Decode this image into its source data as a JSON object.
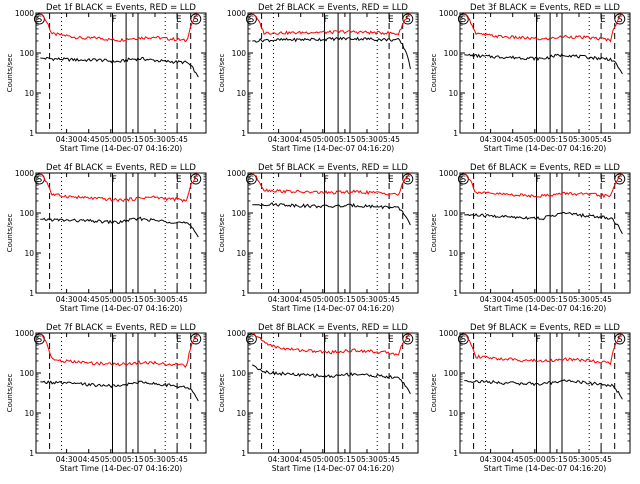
{
  "colors": {
    "events": "#000000",
    "lld": "#ff0000",
    "axes": "#000000",
    "background": "#ffffff"
  },
  "chart_data": [
    {
      "type": "line",
      "title": "Det 1f BLACK = Events, RED = LLD",
      "xlabel": "Start Time (14-Dec-07 04:16:20)",
      "ylabel": "Counts/sec",
      "x_ticks": [
        "04:30",
        "04:45",
        "05:00",
        "05:15",
        "05:30",
        "05:45"
      ],
      "y_ticks": [
        "1",
        "10",
        "100",
        "1000"
      ],
      "ylim": [
        1,
        1000
      ],
      "yscale": "log",
      "markers": [
        "S",
        "F",
        "E",
        "S"
      ],
      "series": [
        {
          "name": "LLD",
          "values": [
            1000,
            300,
            280,
            250,
            230,
            240,
            220,
            210,
            230,
            240,
            250,
            230,
            220,
            200,
            1000
          ]
        },
        {
          "name": "Events",
          "values": [
            75,
            72,
            70,
            68,
            66,
            68,
            64,
            60,
            70,
            72,
            66,
            62,
            60,
            58,
            25
          ]
        }
      ]
    },
    {
      "type": "line",
      "title": "Det 2f BLACK = Events, RED = LLD",
      "xlabel": "Start Time (14-Dec-07 04:16:20)",
      "ylabel": "Counts/sec",
      "x_ticks": [
        "04:30",
        "04:45",
        "05:00",
        "05:15",
        "05:30",
        "05:45"
      ],
      "y_ticks": [
        "1",
        "10",
        "100",
        "1000"
      ],
      "ylim": [
        1,
        1000
      ],
      "yscale": "log",
      "markers": [
        "S",
        "F",
        "E",
        "S"
      ],
      "series": [
        {
          "name": "LLD",
          "values": [
            1000,
            320,
            320,
            320,
            320,
            330,
            330,
            330,
            340,
            340,
            330,
            320,
            320,
            300,
            1000
          ]
        },
        {
          "name": "Events",
          "values": [
            200,
            210,
            210,
            215,
            215,
            220,
            220,
            225,
            230,
            230,
            225,
            220,
            215,
            210,
            40
          ]
        }
      ]
    },
    {
      "type": "line",
      "title": "Det 3f BLACK = Events, RED = LLD",
      "xlabel": "Start Time (14-Dec-07 04:16:20)",
      "ylabel": "Counts/sec",
      "x_ticks": [
        "04:30",
        "04:45",
        "05:00",
        "05:15",
        "05:30",
        "05:45"
      ],
      "y_ticks": [
        "1",
        "10",
        "100",
        "1000"
      ],
      "ylim": [
        1,
        1000
      ],
      "yscale": "log",
      "markers": [
        "S",
        "F",
        "E",
        "S"
      ],
      "series": [
        {
          "name": "LLD",
          "values": [
            1000,
            300,
            280,
            260,
            250,
            240,
            230,
            220,
            240,
            260,
            250,
            240,
            230,
            210,
            1000
          ]
        },
        {
          "name": "Events",
          "values": [
            90,
            85,
            82,
            80,
            78,
            76,
            74,
            72,
            85,
            90,
            82,
            78,
            74,
            70,
            30
          ]
        }
      ]
    },
    {
      "type": "line",
      "title": "Det 4f BLACK = Events, RED = LLD",
      "xlabel": "Start Time (14-Dec-07 04:16:20)",
      "ylabel": "Counts/sec",
      "x_ticks": [
        "04:30",
        "04:45",
        "05:00",
        "05:15",
        "05:30",
        "05:45"
      ],
      "y_ticks": [
        "1",
        "10",
        "100",
        "1000"
      ],
      "ylim": [
        1,
        1000
      ],
      "yscale": "log",
      "markers": [
        "S",
        "F",
        "E",
        "S"
      ],
      "series": [
        {
          "name": "LLD",
          "values": [
            1000,
            290,
            270,
            250,
            240,
            230,
            220,
            210,
            220,
            240,
            250,
            230,
            220,
            200,
            1000
          ]
        },
        {
          "name": "Events",
          "values": [
            70,
            68,
            66,
            65,
            64,
            62,
            60,
            58,
            68,
            72,
            66,
            62,
            60,
            55,
            25
          ]
        }
      ]
    },
    {
      "type": "line",
      "title": "Det 5f BLACK = Events, RED = LLD",
      "xlabel": "Start Time (14-Dec-07 04:16:20)",
      "ylabel": "Counts/sec",
      "x_ticks": [
        "04:30",
        "04:45",
        "05:00",
        "05:15",
        "05:30",
        "05:45"
      ],
      "y_ticks": [
        "1",
        "10",
        "100",
        "1000"
      ],
      "ylim": [
        1,
        1000
      ],
      "yscale": "log",
      "markers": [
        "S",
        "F",
        "E",
        "S"
      ],
      "series": [
        {
          "name": "LLD",
          "values": [
            1000,
            380,
            360,
            350,
            340,
            330,
            330,
            320,
            330,
            340,
            330,
            320,
            310,
            290,
            1000
          ]
        },
        {
          "name": "Events",
          "values": [
            160,
            165,
            165,
            160,
            155,
            150,
            148,
            145,
            150,
            155,
            150,
            145,
            140,
            130,
            50
          ]
        }
      ]
    },
    {
      "type": "line",
      "title": "Det 6f BLACK = Events, RED = LLD",
      "xlabel": "Start Time (14-Dec-07 04:16:20)",
      "ylabel": "Counts/sec",
      "x_ticks": [
        "04:30",
        "04:45",
        "05:00",
        "05:15",
        "05:30",
        "05:45"
      ],
      "y_ticks": [
        "1",
        "10",
        "100",
        "1000"
      ],
      "ylim": [
        1,
        1000
      ],
      "yscale": "log",
      "markers": [
        "S",
        "F",
        "E",
        "S"
      ],
      "series": [
        {
          "name": "LLD",
          "values": [
            1000,
            330,
            310,
            300,
            290,
            280,
            270,
            270,
            290,
            310,
            300,
            290,
            280,
            260,
            1000
          ]
        },
        {
          "name": "Events",
          "values": [
            90,
            88,
            85,
            82,
            80,
            78,
            76,
            74,
            90,
            100,
            90,
            85,
            80,
            75,
            30
          ]
        }
      ]
    },
    {
      "type": "line",
      "title": "Det 7f BLACK = Events, RED = LLD",
      "xlabel": "Start Time (14-Dec-07 04:16:20)",
      "ylabel": "Counts/sec",
      "x_ticks": [
        "04:30",
        "04:45",
        "05:00",
        "05:15",
        "05:30",
        "05:45"
      ],
      "y_ticks": [
        "1",
        "10",
        "100",
        "1000"
      ],
      "ylim": [
        1,
        1000
      ],
      "yscale": "log",
      "markers": [
        "S",
        "F",
        "E",
        "S"
      ],
      "series": [
        {
          "name": "LLD",
          "values": [
            1000,
            220,
            200,
            190,
            180,
            175,
            170,
            165,
            175,
            185,
            180,
            170,
            160,
            150,
            1000
          ]
        },
        {
          "name": "Events",
          "values": [
            60,
            58,
            56,
            54,
            52,
            50,
            48,
            46,
            55,
            60,
            55,
            50,
            48,
            45,
            20
          ]
        }
      ]
    },
    {
      "type": "line",
      "title": "Det 8f BLACK = Events, RED = LLD",
      "xlabel": "Start Time (14-Dec-07 04:16:20)",
      "ylabel": "Counts/sec",
      "x_ticks": [
        "04:30",
        "04:45",
        "05:00",
        "05:15",
        "05:30",
        "05:45"
      ],
      "y_ticks": [
        "1",
        "10",
        "100",
        "1000"
      ],
      "ylim": [
        1,
        1000
      ],
      "yscale": "log",
      "markers": [
        "S",
        "F",
        "E",
        "S"
      ],
      "series": [
        {
          "name": "LLD",
          "values": [
            1000,
            600,
            450,
            400,
            380,
            360,
            340,
            330,
            350,
            370,
            360,
            340,
            320,
            300,
            1000
          ]
        },
        {
          "name": "Events",
          "values": [
            160,
            110,
            100,
            95,
            90,
            88,
            85,
            82,
            90,
            95,
            90,
            85,
            80,
            75,
            30
          ]
        }
      ]
    },
    {
      "type": "line",
      "title": "Det 9f BLACK = Events, RED = LLD",
      "xlabel": "Start Time (14-Dec-07 04:16:20)",
      "ylabel": "Counts/sec",
      "x_ticks": [
        "04:30",
        "04:45",
        "05:00",
        "05:15",
        "05:30",
        "05:45"
      ],
      "y_ticks": [
        "1",
        "10",
        "100",
        "1000"
      ],
      "ylim": [
        1,
        1000
      ],
      "yscale": "log",
      "markers": [
        "S",
        "F",
        "E",
        "S"
      ],
      "series": [
        {
          "name": "LLD",
          "values": [
            1000,
            260,
            240,
            230,
            220,
            210,
            205,
            200,
            210,
            220,
            215,
            205,
            195,
            180,
            1000
          ]
        },
        {
          "name": "Events",
          "values": [
            65,
            62,
            60,
            58,
            56,
            55,
            54,
            52,
            60,
            65,
            60,
            56,
            52,
            50,
            22
          ]
        }
      ]
    }
  ]
}
